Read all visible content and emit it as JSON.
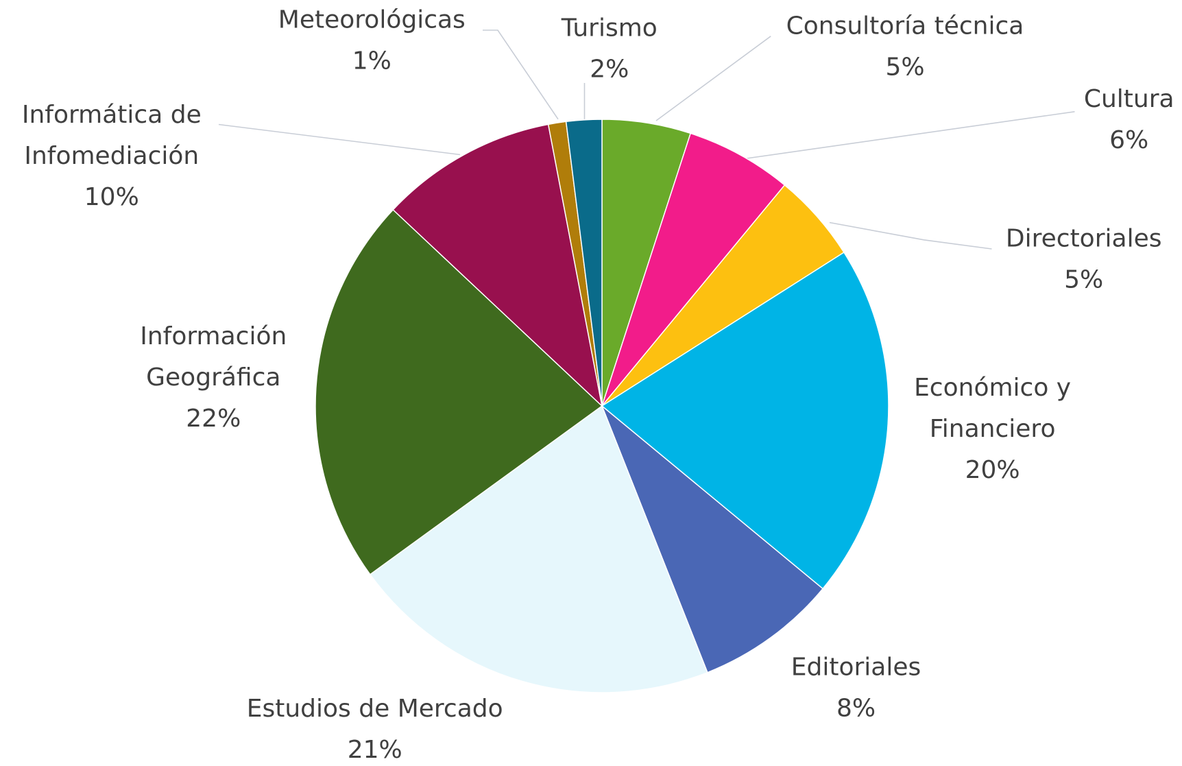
{
  "chart_data": {
    "type": "pie",
    "categories": [
      "Consultoría técnica",
      "Cultura",
      "Directoriales",
      "Económico y\nFinanciero",
      "Editoriales",
      "Estudios de Mercado",
      "Información\nGeográfica",
      "Informática de\nInfomediación",
      "Meteorológicas",
      "Turismo"
    ],
    "values": [
      5,
      6,
      5,
      20,
      8,
      21,
      22,
      10,
      1,
      2
    ],
    "value_labels": [
      "5%",
      "6%",
      "5%",
      "20%",
      "8%",
      "21%",
      "22%",
      "10%",
      "1%",
      "2%"
    ],
    "colors": [
      "#6aaa2a",
      "#f21c8a",
      "#fdc010",
      "#00b4e6",
      "#4a67b5",
      "#e6f7fc",
      "#3f6a1e",
      "#98104e",
      "#b07d0a",
      "#0a6b8a"
    ]
  }
}
